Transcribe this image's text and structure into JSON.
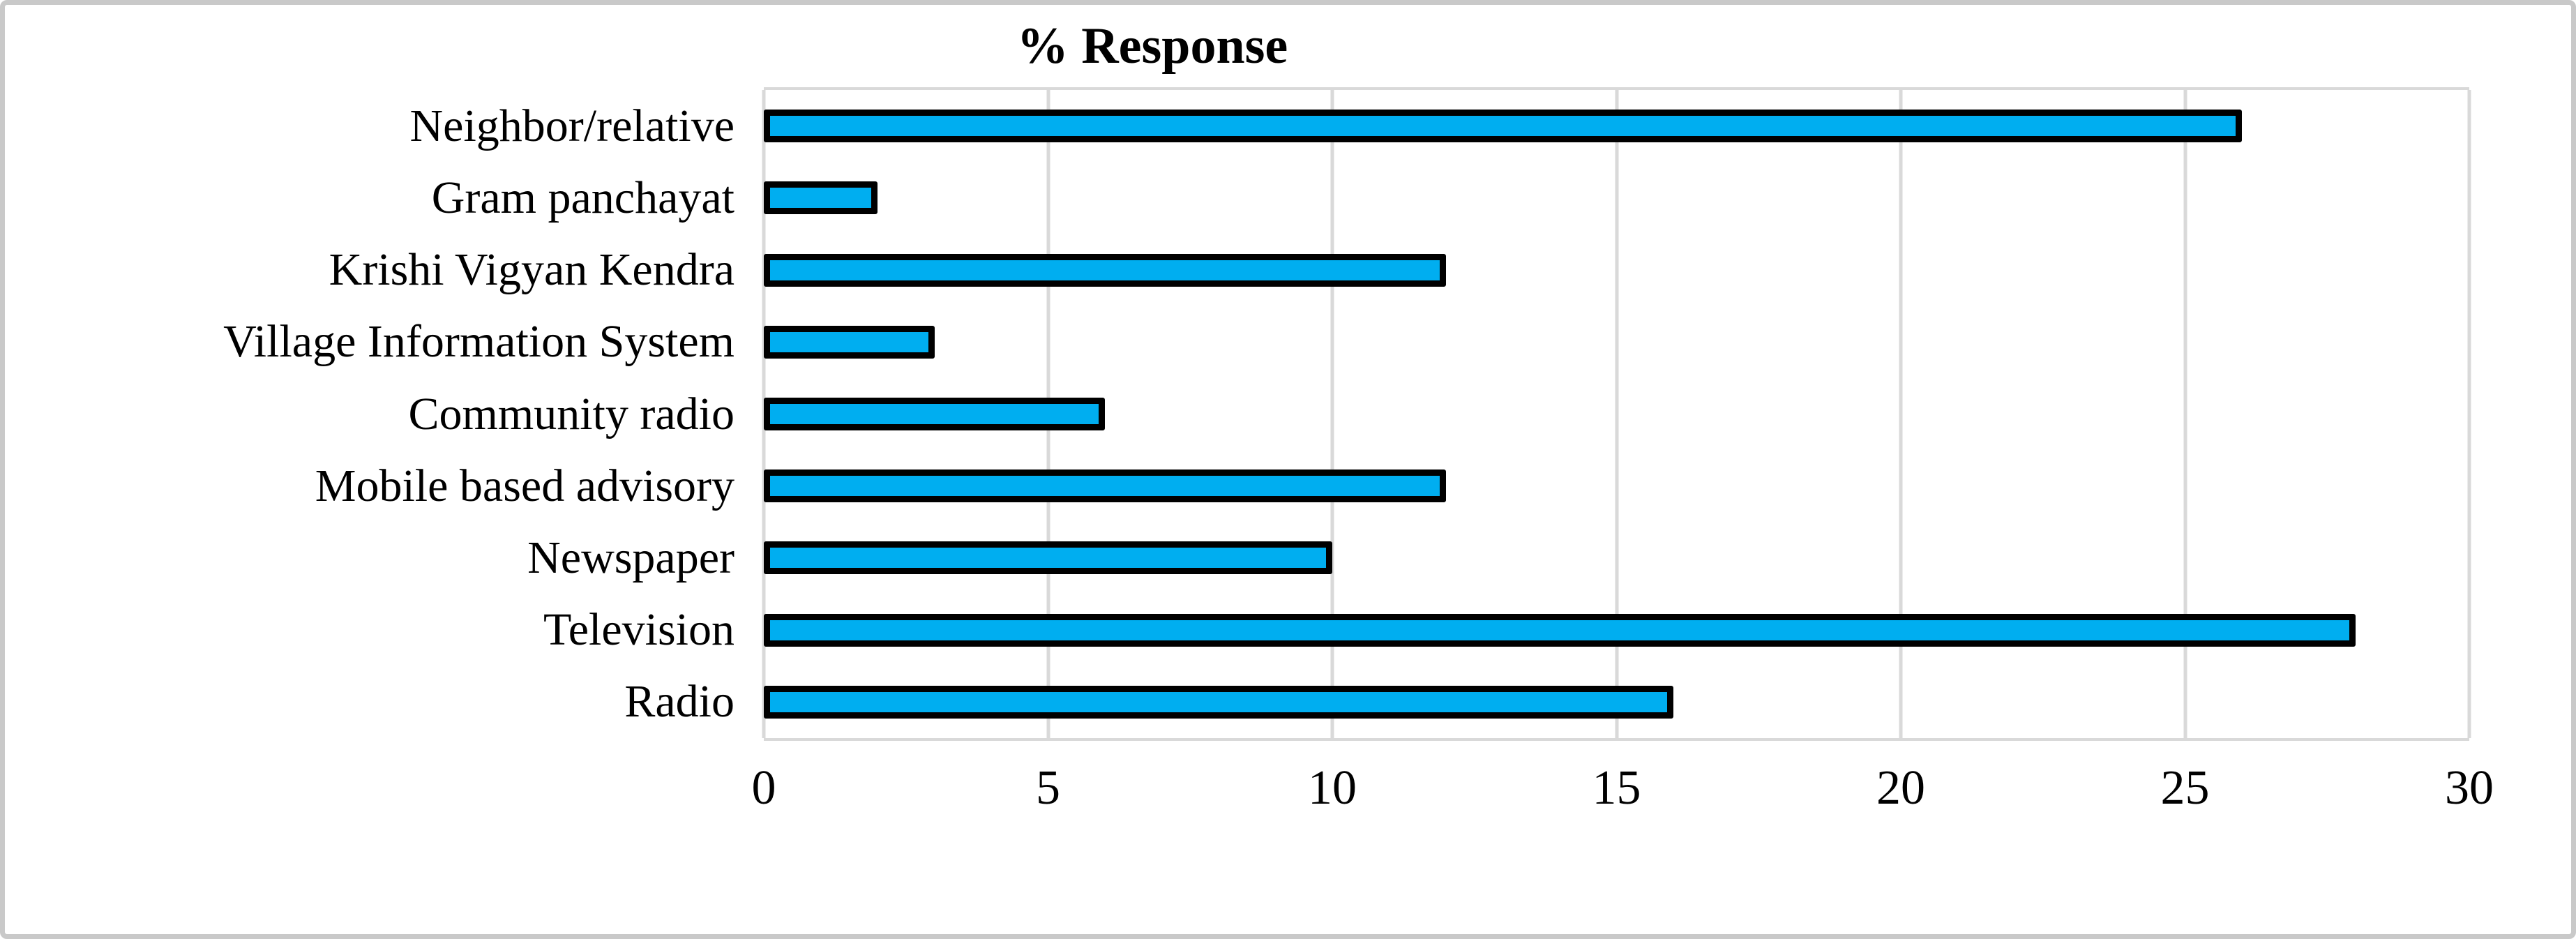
{
  "figure": {
    "title": "% Response"
  },
  "chart_data": {
    "type": "bar",
    "orientation": "horizontal",
    "title": "% Response",
    "categories": [
      "Neighbor/relative",
      "Gram panchayat",
      "Krishi Vigyan Kendra",
      "Village Information System",
      "Community radio",
      "Mobile based advisory",
      "Newspaper",
      "Television",
      "Radio"
    ],
    "values": [
      26,
      2,
      12,
      3,
      6,
      12,
      10,
      28,
      16
    ],
    "xlabel": "",
    "ylabel": "",
    "xlim": [
      0,
      30
    ],
    "xticks": [
      0,
      5,
      10,
      15,
      20,
      25,
      30
    ],
    "grid": true,
    "legend": "none",
    "colors": {
      "bar_fill": "#00aef0",
      "bar_border": "#000000",
      "gridline": "#d9d9d9",
      "frame_border": "#c9c9c9",
      "text": "#000000",
      "background": "#ffffff"
    }
  }
}
